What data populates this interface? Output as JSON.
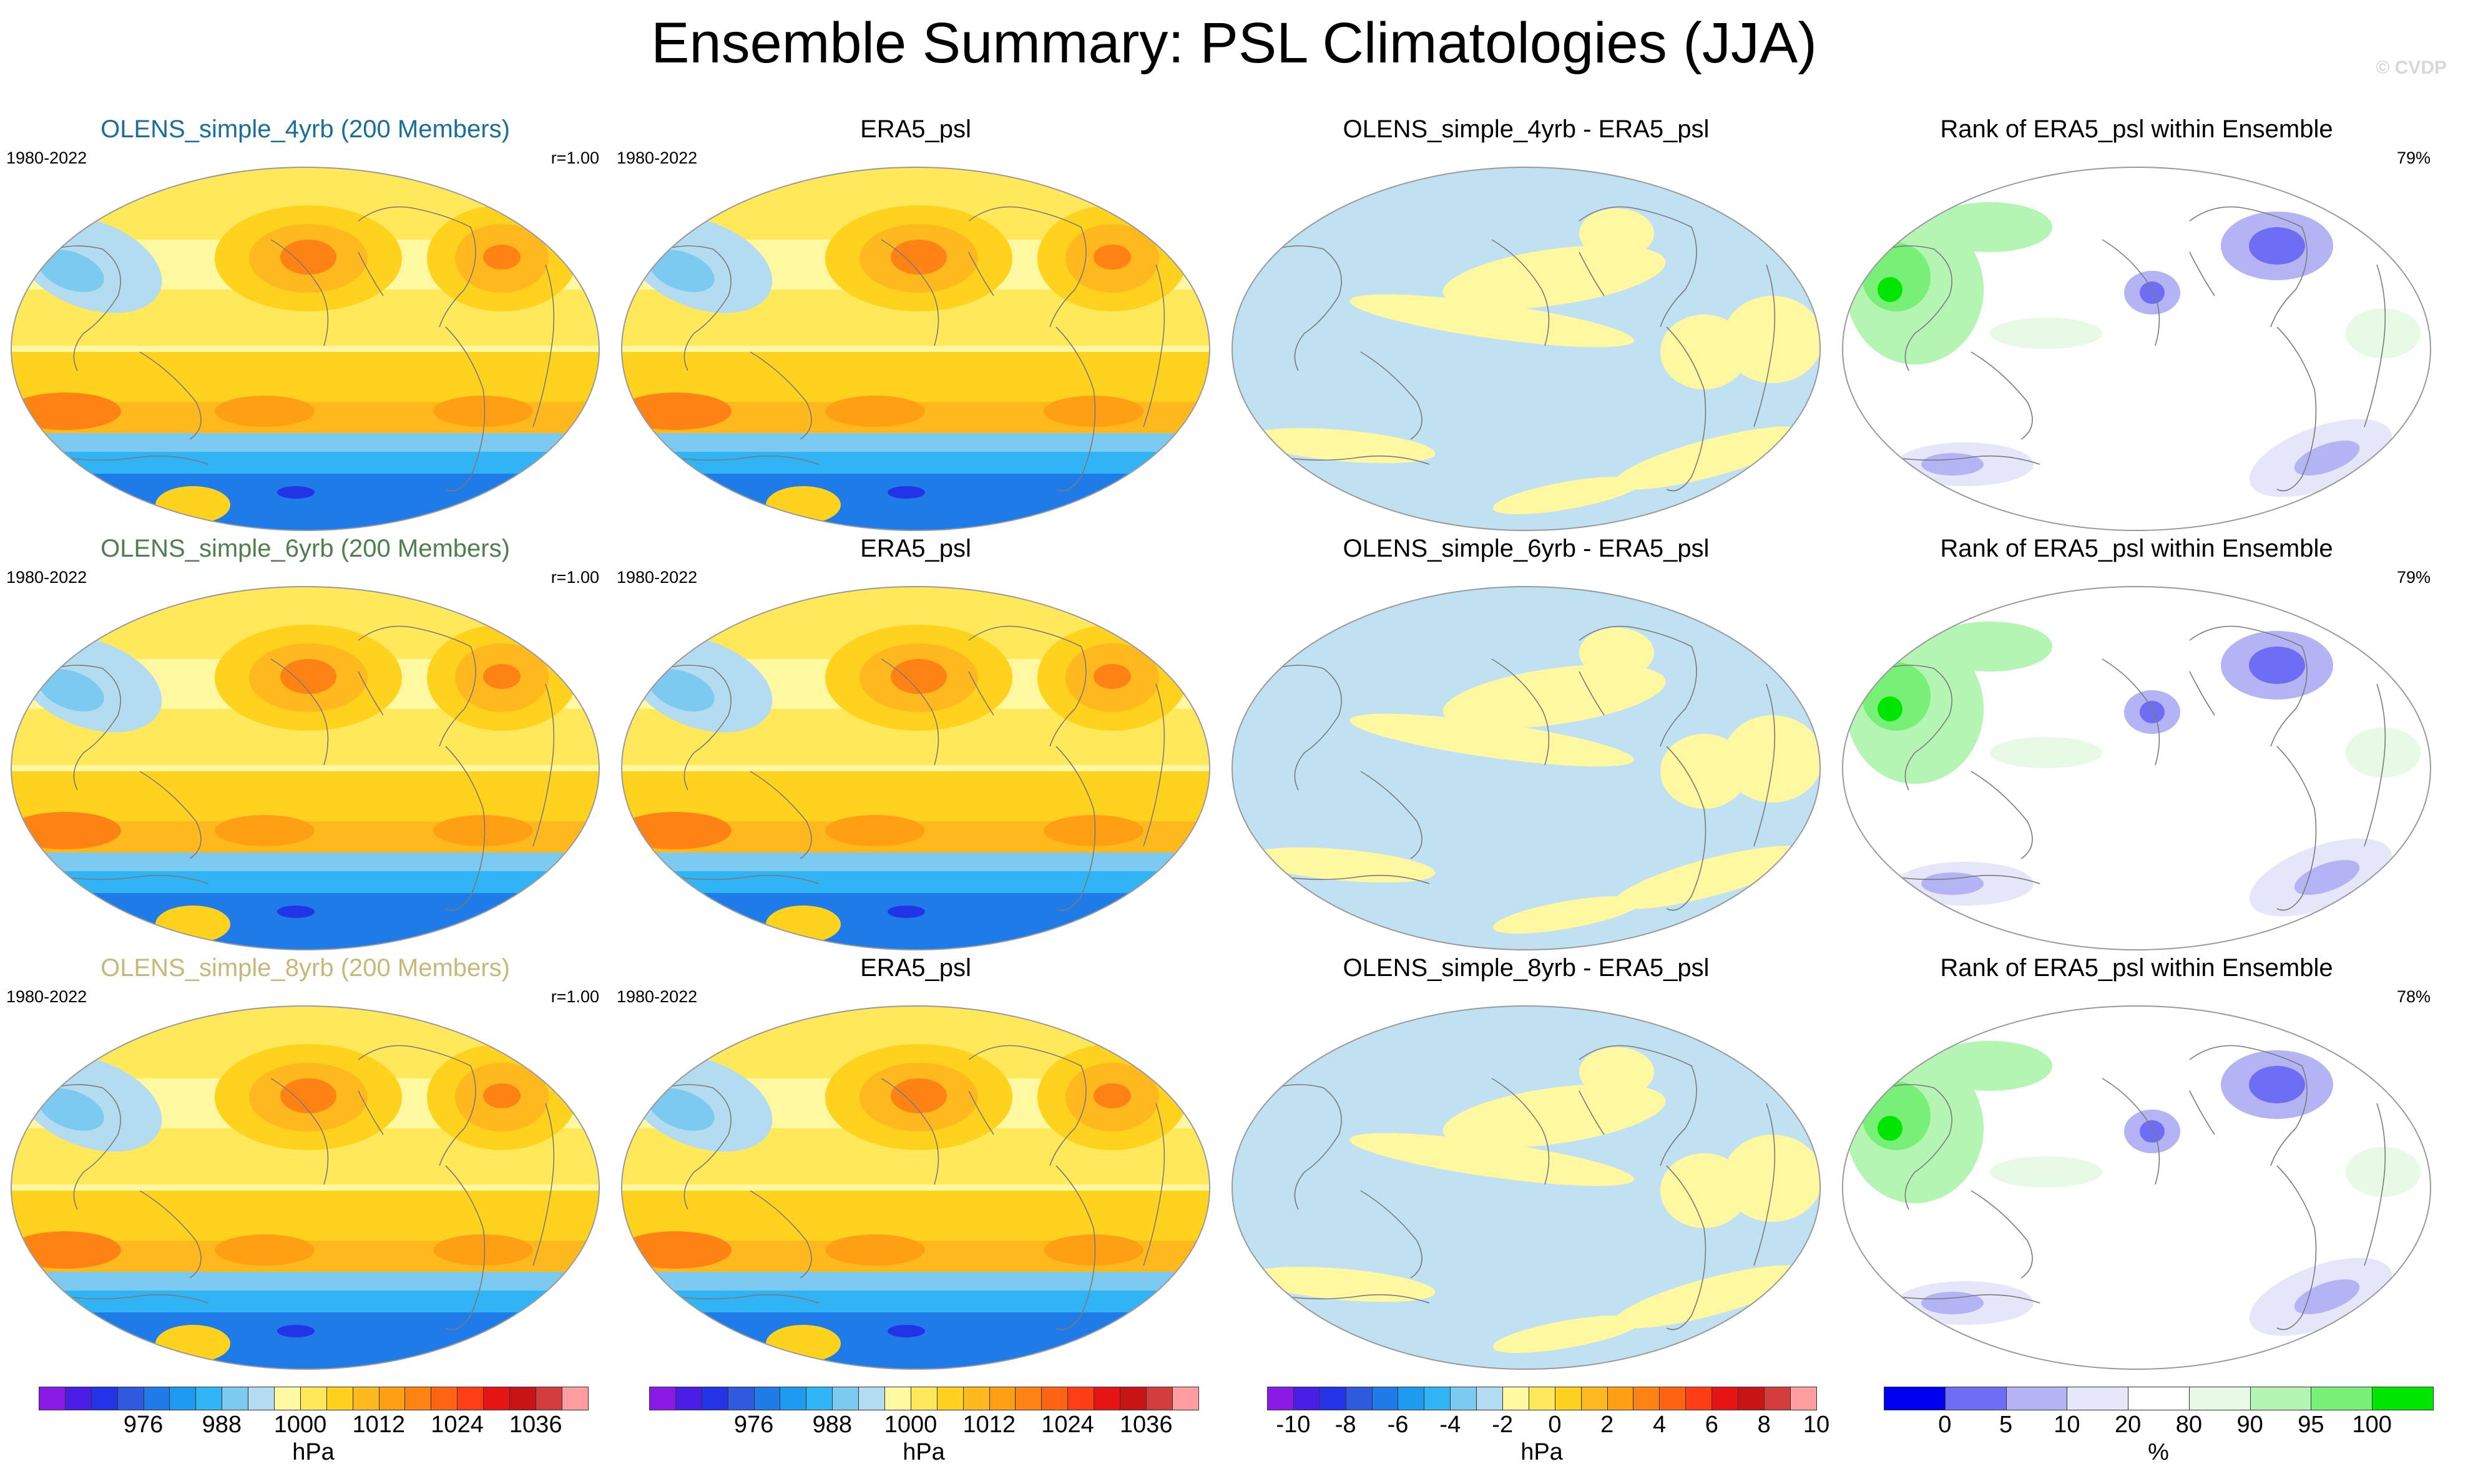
{
  "title": "Ensemble Summary: PSL Climatologies (JJA)",
  "watermark": "© CVDP",
  "colors": {
    "land_line": "#7a7a7a",
    "model_titles": [
      "#1a6f9a",
      "#4f7f4f",
      "#c8b878"
    ]
  },
  "rows": [
    {
      "panels": [
        {
          "title": "OLENS_simple_4yrb (200 Members)",
          "period": "1980-2022",
          "stat": "r=1.00",
          "kind": "psl",
          "title_color": "#1a6f9a"
        },
        {
          "title": "ERA5_psl",
          "period": "1980-2022",
          "stat": "",
          "kind": "psl",
          "title_color": "#000000"
        },
        {
          "title": "OLENS_simple_4yrb - ERA5_psl",
          "period": "",
          "stat": "",
          "kind": "diff",
          "title_color": "#000000"
        },
        {
          "title": "Rank of ERA5_psl within Ensemble",
          "period": "",
          "stat": "79%",
          "kind": "rank",
          "title_color": "#000000"
        }
      ]
    },
    {
      "panels": [
        {
          "title": "OLENS_simple_6yrb (200 Members)",
          "period": "1980-2022",
          "stat": "r=1.00",
          "kind": "psl",
          "title_color": "#4f7f4f"
        },
        {
          "title": "ERA5_psl",
          "period": "1980-2022",
          "stat": "",
          "kind": "psl",
          "title_color": "#000000"
        },
        {
          "title": "OLENS_simple_6yrb - ERA5_psl",
          "period": "",
          "stat": "",
          "kind": "diff",
          "title_color": "#000000"
        },
        {
          "title": "Rank of ERA5_psl within Ensemble",
          "period": "",
          "stat": "79%",
          "kind": "rank",
          "title_color": "#000000"
        }
      ]
    },
    {
      "panels": [
        {
          "title": "OLENS_simple_8yrb (200 Members)",
          "period": "1980-2022",
          "stat": "r=1.00",
          "kind": "psl",
          "title_color": "#c8b878"
        },
        {
          "title": "ERA5_psl",
          "period": "1980-2022",
          "stat": "",
          "kind": "psl",
          "title_color": "#000000"
        },
        {
          "title": "OLENS_simple_8yrb - ERA5_psl",
          "period": "",
          "stat": "",
          "kind": "diff",
          "title_color": "#000000"
        },
        {
          "title": "Rank of ERA5_psl within Ensemble",
          "period": "",
          "stat": "78%",
          "kind": "rank",
          "title_color": "#000000"
        }
      ]
    }
  ],
  "colorbars": [
    {
      "unit": "hPa",
      "ticks": [
        "976",
        "988",
        "1000",
        "1012",
        "1024",
        "1036"
      ],
      "tick_box_index": [
        4,
        7,
        10,
        13,
        16,
        19
      ],
      "colors": [
        "#8b1ae6",
        "#4b1ee6",
        "#2334e6",
        "#2f5ae0",
        "#1e7be8",
        "#1e9bf0",
        "#30b4f5",
        "#7ccaf0",
        "#b4dcf0",
        "#fff8a0",
        "#ffe85a",
        "#ffd21e",
        "#ffb91e",
        "#ffa014",
        "#ff8214",
        "#ff6414",
        "#ff3c14",
        "#e61414",
        "#c81414",
        "#d23c3c",
        "#ff9ca0"
      ]
    },
    {
      "unit": "hPa",
      "ticks": [
        "976",
        "988",
        "1000",
        "1012",
        "1024",
        "1036"
      ],
      "tick_box_index": [
        4,
        7,
        10,
        13,
        16,
        19
      ],
      "colors": [
        "#8b1ae6",
        "#4b1ee6",
        "#2334e6",
        "#2f5ae0",
        "#1e7be8",
        "#1e9bf0",
        "#30b4f5",
        "#7ccaf0",
        "#b4dcf0",
        "#fff8a0",
        "#ffe85a",
        "#ffd21e",
        "#ffb91e",
        "#ffa014",
        "#ff8214",
        "#ff6414",
        "#ff3c14",
        "#e61414",
        "#c81414",
        "#d23c3c",
        "#ff9ca0"
      ]
    },
    {
      "unit": "hPa",
      "ticks": [
        "-10",
        "-8",
        "-6",
        "-4",
        "-2",
        "0",
        "2",
        "4",
        "6",
        "8",
        "10"
      ],
      "tick_box_index": [
        1,
        3,
        5,
        7,
        9,
        11,
        13,
        15,
        17,
        19,
        21
      ],
      "colors": [
        "#8b1ae6",
        "#4b1ee6",
        "#2334e6",
        "#2f5ae0",
        "#1e7be8",
        "#1e9bf0",
        "#30b4f5",
        "#7ccaf0",
        "#b4dcf0",
        "#fff8a0",
        "#ffe85a",
        "#ffd21e",
        "#ffb91e",
        "#ffa014",
        "#ff8214",
        "#ff6414",
        "#ff3c14",
        "#e61414",
        "#c81414",
        "#d23c3c",
        "#ff9ca0"
      ]
    },
    {
      "unit": "%",
      "ticks": [
        "0",
        "5",
        "10",
        "20",
        "80",
        "90",
        "95",
        "100"
      ],
      "tick_box_index": [
        1,
        2,
        3,
        4,
        5,
        6,
        7,
        8
      ],
      "colors": [
        "#0000f0",
        "#6e6ef5",
        "#b4b4f5",
        "#e6e6fa",
        "#ffffff",
        "#e6fae6",
        "#b4f5b4",
        "#78f078",
        "#00e600"
      ]
    }
  ]
}
